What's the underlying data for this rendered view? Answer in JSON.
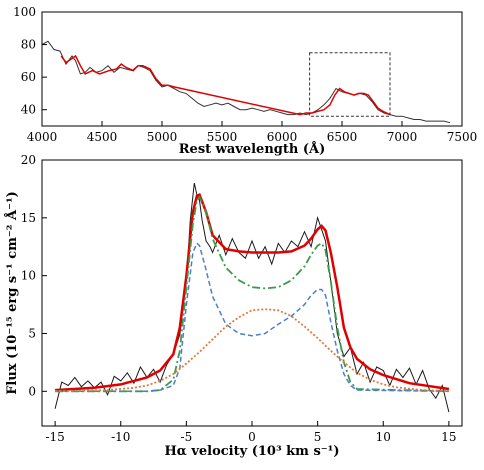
{
  "chart_data": [
    {
      "type": "line",
      "xlabel": "Rest wavelength (Å)",
      "ylabel": "",
      "xlim": [
        4000,
        7500
      ],
      "ylim": [
        30,
        100
      ],
      "xticks": [
        4000,
        4500,
        5000,
        5500,
        6000,
        6500,
        7000,
        7500
      ],
      "yticks": [
        40,
        60,
        80,
        100
      ],
      "inset_box": {
        "x": [
          6230,
          6900
        ],
        "y": [
          36,
          75
        ]
      },
      "colors": {
        "observed": "#333333",
        "error": "#b0b0b0",
        "fit": "#e00000",
        "box": "#333333"
      },
      "series": [
        {
          "x": [
            4000,
            4050,
            4100,
            4150,
            4200,
            4250,
            4280,
            4320,
            4360,
            4400,
            4450,
            4500,
            4550,
            4600,
            4650,
            4700,
            4750,
            4800,
            4850,
            4900,
            4950,
            5000,
            5050,
            5100,
            5150,
            5200,
            5250,
            5300,
            5350,
            5400,
            5450,
            5500,
            5550,
            5600,
            5650,
            5700,
            5750,
            5800,
            5850,
            5900,
            5950,
            6000,
            6050,
            6100,
            6150,
            6200,
            6250,
            6300,
            6350,
            6400,
            6450,
            6500,
            6550,
            6600,
            6650,
            6700,
            6750,
            6800,
            6850,
            6900,
            6950,
            7000,
            7050,
            7100,
            7150,
            7200,
            7250,
            7300,
            7350,
            7400
          ],
          "values": [
            80,
            82,
            77,
            76,
            68,
            73,
            70,
            62,
            63,
            66,
            63,
            64,
            67,
            63,
            66,
            65,
            64,
            67,
            66,
            64,
            58,
            54,
            55,
            53,
            51,
            50,
            47,
            44,
            42,
            43,
            44,
            43,
            44,
            42,
            40,
            40,
            41,
            40,
            39,
            40,
            39,
            38,
            37,
            37,
            38,
            37,
            38,
            40,
            43,
            47,
            53,
            51,
            50,
            49,
            50,
            49,
            45,
            40,
            38,
            37,
            36,
            36,
            35,
            34,
            34,
            33,
            33,
            33,
            33,
            32
          ]
        },
        {
          "name": "",
          "x": [
            4160,
            4200,
            4240,
            4280,
            4320,
            4360,
            4420,
            4480,
            4560,
            4620,
            4660,
            4700,
            4760,
            4800,
            4840,
            4900,
            4950,
            5000,
            5050,
            5100,
            6150,
            6200,
            6250,
            6300,
            6350,
            6400,
            6440,
            6480,
            6520,
            6560,
            6600,
            6640,
            6680,
            6720,
            6760,
            6800,
            6840,
            6900
          ],
          "values": [
            73,
            69,
            71,
            73,
            67,
            62,
            64,
            62,
            64,
            65,
            68,
            66,
            64,
            67,
            67,
            65,
            59,
            55,
            55,
            54,
            37,
            38,
            38,
            39,
            40,
            43,
            49,
            53,
            51,
            50,
            49,
            50,
            50,
            49,
            45,
            41,
            39,
            37
          ]
        }
      ]
    },
    {
      "type": "line",
      "xlabel": "Hα velocity (10³ km s⁻¹)",
      "ylabel": "Flux (10⁻¹⁵ erg s⁻¹ cm⁻² Å⁻¹)",
      "xlim": [
        -16,
        16
      ],
      "ylim": [
        -3,
        20
      ],
      "xticks": [
        -15,
        -10,
        -5,
        0,
        5,
        10,
        15
      ],
      "yticks": [
        0,
        5,
        10,
        15,
        20
      ],
      "colors": {
        "observed": "#1a1a1a",
        "total_fit": "#e00000",
        "component_green": "#3a9a4a",
        "component_blue": "#4a7fd0",
        "component_orange": "#e07a3a"
      },
      "series": [
        {
          "x": [
            -15,
            -14.5,
            -14,
            -13.5,
            -13,
            -12.5,
            -12,
            -11.5,
            -11,
            -10.5,
            -10,
            -9.5,
            -9,
            -8.5,
            -8,
            -7.5,
            -7,
            -6.5,
            -6,
            -5.5,
            -5,
            -4.7,
            -4.4,
            -4.2,
            -4.0,
            -3.8,
            -3.5,
            -3.2,
            -3,
            -2.5,
            -2,
            -1.5,
            -1,
            -0.5,
            0,
            0.5,
            1,
            1.5,
            2,
            2.5,
            3,
            3.5,
            4,
            4.5,
            5,
            5.3,
            5.6,
            6,
            6.5,
            7,
            7.5,
            8,
            8.5,
            9,
            9.5,
            10,
            10.5,
            11,
            11.5,
            12,
            12.5,
            13,
            13.5,
            14,
            14.5,
            15
          ],
          "values": [
            -1.5,
            0.8,
            0.5,
            1.2,
            0.4,
            0.9,
            0.3,
            0.8,
            -0.3,
            1.3,
            0.9,
            1.6,
            0.7,
            2.1,
            1.2,
            1.9,
            0.8,
            2.3,
            3.2,
            4.9,
            9.5,
            14.8,
            18.0,
            17.0,
            16.5,
            14.8,
            13.0,
            12.5,
            12.0,
            13.5,
            11.8,
            13.2,
            12.0,
            11.5,
            13.0,
            11.5,
            12.5,
            11.0,
            12.8,
            12.0,
            13.0,
            12.5,
            13.8,
            12.5,
            15.0,
            14.0,
            13.0,
            9.5,
            5.0,
            3.0,
            3.8,
            1.5,
            2.5,
            0.8,
            2.1,
            1.8,
            0.5,
            1.9,
            1.2,
            2.0,
            0.6,
            1.8,
            0.2,
            -0.6,
            0.5,
            -1.8
          ]
        },
        {
          "x": [
            -15,
            -12,
            -10,
            -8,
            -7,
            -6,
            -5.5,
            -5,
            -4.5,
            -4.2,
            -4,
            -3.5,
            -3,
            -2,
            -1,
            0,
            1,
            2,
            3,
            4,
            4.5,
            5,
            5.3,
            5.6,
            6,
            6.5,
            7,
            7.5,
            8,
            9,
            10,
            12,
            15
          ],
          "values": [
            0.1,
            0.3,
            0.6,
            1.2,
            1.8,
            3.2,
            5.5,
            10.0,
            15.5,
            16.9,
            17.0,
            15.5,
            13.5,
            12.3,
            12.1,
            12.0,
            12.0,
            12.0,
            12.1,
            12.6,
            13.2,
            14.0,
            14.3,
            13.9,
            12.0,
            9.0,
            5.5,
            3.8,
            2.8,
            1.9,
            1.4,
            0.7,
            0.2
          ]
        },
        {
          "x": [
            -15,
            -8,
            -7,
            -6,
            -5.5,
            -5,
            -4.5,
            -4.2,
            -4,
            -3.5,
            -3,
            -2,
            -1,
            0,
            1,
            2,
            3,
            4,
            4.5,
            5,
            5.3,
            5.6,
            6,
            6.5,
            7,
            7.5,
            8,
            15
          ],
          "values": [
            0,
            0,
            0.1,
            1.0,
            3.5,
            9.0,
            14.5,
            16.5,
            16.8,
            15.5,
            13.2,
            10.7,
            9.6,
            9.0,
            8.9,
            9.0,
            9.6,
            10.8,
            11.8,
            12.6,
            12.8,
            12.2,
            9.5,
            5.5,
            2.5,
            0.8,
            0.2,
            0
          ]
        },
        {
          "x": [
            -15,
            -8,
            -7,
            -6,
            -5.5,
            -5,
            -4.5,
            -4.2,
            -4,
            -3.5,
            -3,
            -2,
            -1,
            0,
            1,
            2,
            3,
            4,
            4.5,
            5,
            5.3,
            5.6,
            6,
            6.5,
            7,
            7.5,
            8,
            15
          ],
          "values": [
            0,
            0,
            0.1,
            0.5,
            2.0,
            7.5,
            12.0,
            12.8,
            12.6,
            10.5,
            8.2,
            5.8,
            5.0,
            4.8,
            5.0,
            5.8,
            6.5,
            7.5,
            8.3,
            8.8,
            8.8,
            8.3,
            6.0,
            3.5,
            1.5,
            0.5,
            0.1,
            0
          ]
        },
        {
          "x": [
            -15,
            -13,
            -11,
            -9,
            -8,
            -7,
            -6,
            -5,
            -4,
            -3,
            -2,
            -1,
            0,
            1,
            2,
            3,
            4,
            5,
            6,
            7,
            8,
            9,
            10,
            11,
            13,
            15
          ],
          "values": [
            0.02,
            0.05,
            0.1,
            0.3,
            0.5,
            0.9,
            1.5,
            2.4,
            3.4,
            4.5,
            5.6,
            6.4,
            7.0,
            7.1,
            7.0,
            6.5,
            5.6,
            4.6,
            3.5,
            2.5,
            1.6,
            1.0,
            0.6,
            0.35,
            0.1,
            0.03
          ]
        }
      ]
    }
  ]
}
